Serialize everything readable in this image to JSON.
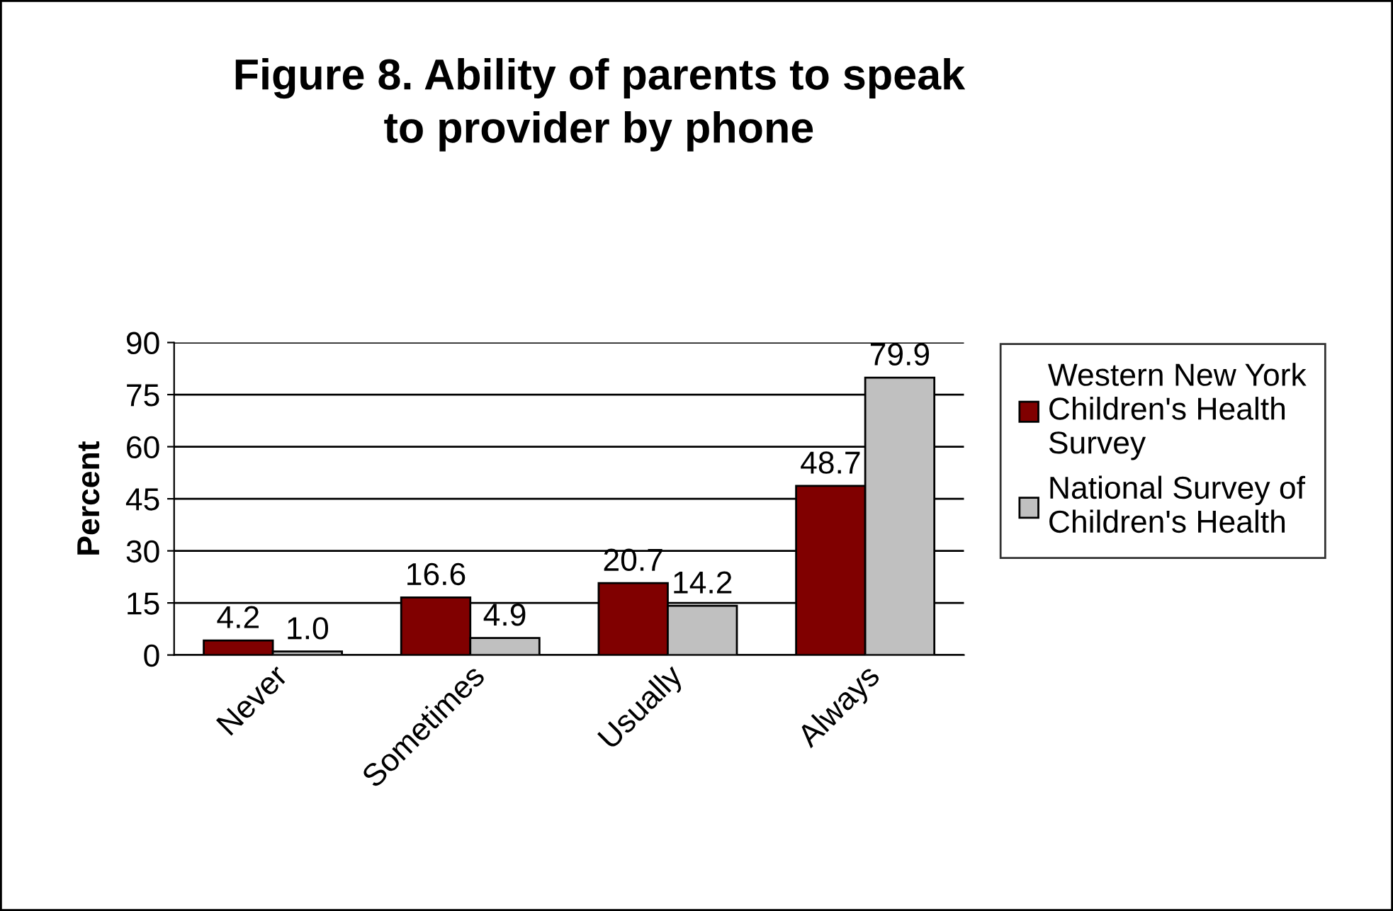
{
  "chart_data": {
    "type": "bar",
    "title": "Figure 8. Ability of parents to speak\nto provider by phone",
    "ylabel": "Percent",
    "categories": [
      "Never",
      "Sometimes",
      "Usually",
      "Always"
    ],
    "series": [
      {
        "name": "Western New York\nChildren's Health\nSurvey",
        "color": "#800000",
        "values": [
          4.2,
          16.6,
          20.7,
          48.7
        ],
        "value_labels": [
          "4.2",
          "16.6",
          "20.7",
          "48.7"
        ]
      },
      {
        "name": "National Survey of\nChildren's Health",
        "color": "#c0c0c0",
        "values": [
          1.0,
          4.9,
          14.2,
          79.9
        ],
        "value_labels": [
          "1.0",
          "4.9",
          "14.2",
          "79.9"
        ]
      }
    ],
    "ylim": [
      0,
      90
    ],
    "yticks": [
      0,
      15,
      30,
      45,
      60,
      75,
      90
    ],
    "grid": "y",
    "legend": "right"
  }
}
